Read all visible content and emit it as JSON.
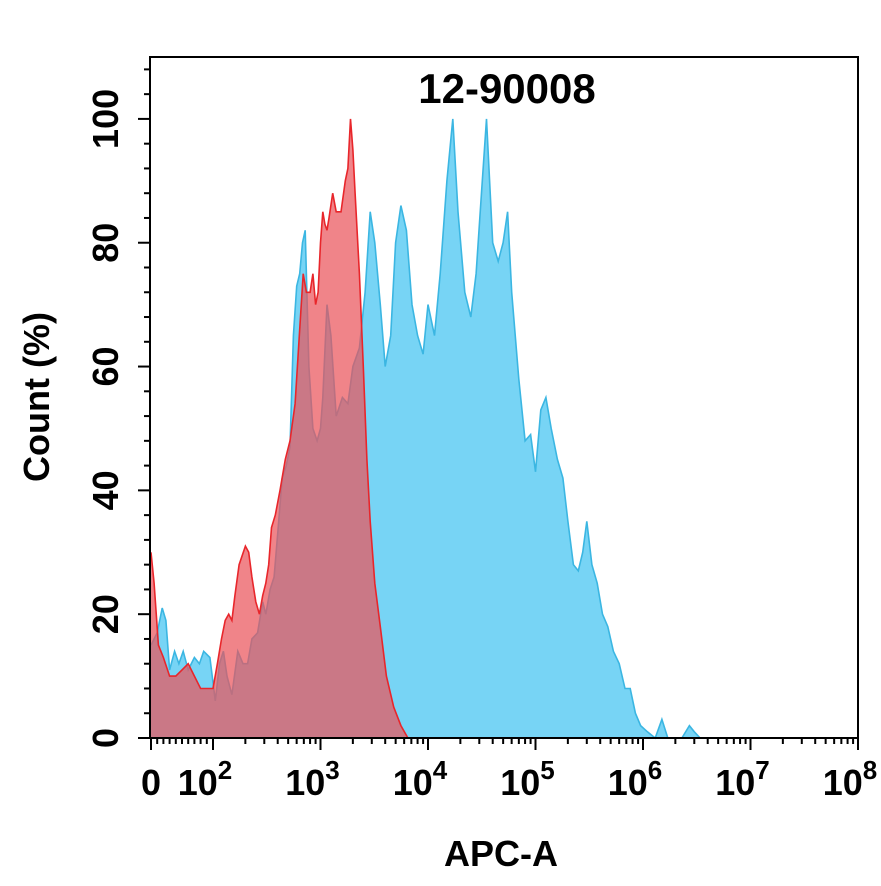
{
  "chart_data": {
    "type": "area",
    "title": "12-90008",
    "xlabel": "APC-A",
    "ylabel": "Count (%)",
    "x_scale": "biexponential (log)",
    "xlim": [
      0,
      100000000
    ],
    "ylim": [
      0,
      110
    ],
    "grid": false,
    "legend": "none",
    "x_ticks": [
      {
        "value": 0,
        "base": "0",
        "exp": ""
      },
      {
        "value": 100,
        "base": "10",
        "exp": "2"
      },
      {
        "value": 1000,
        "base": "10",
        "exp": "3"
      },
      {
        "value": 10000,
        "base": "10",
        "exp": "4"
      },
      {
        "value": 100000,
        "base": "10",
        "exp": "5"
      },
      {
        "value": 1000000,
        "base": "10",
        "exp": "6"
      },
      {
        "value": 10000000,
        "base": "10",
        "exp": "7"
      },
      {
        "value": 100000000,
        "base": "10",
        "exp": "8"
      }
    ],
    "y_ticks": [
      "0",
      "20",
      "40",
      "60",
      "80",
      "100"
    ],
    "series": [
      {
        "color": "#3bb6e2",
        "fill": "#77d4f5",
        "points": [
          [
            0,
            15
          ],
          [
            10,
            17
          ],
          [
            18,
            21
          ],
          [
            24,
            19
          ],
          [
            30,
            11
          ],
          [
            38,
            14
          ],
          [
            45,
            12
          ],
          [
            52,
            14
          ],
          [
            60,
            11
          ],
          [
            70,
            13
          ],
          [
            78,
            12
          ],
          [
            85,
            14
          ],
          [
            95,
            13
          ],
          [
            105,
            6
          ],
          [
            115,
            12
          ],
          [
            125,
            14
          ],
          [
            135,
            10
          ],
          [
            150,
            7
          ],
          [
            170,
            14
          ],
          [
            190,
            12
          ],
          [
            210,
            12
          ],
          [
            230,
            16
          ],
          [
            260,
            17
          ],
          [
            290,
            22
          ],
          [
            310,
            20
          ],
          [
            340,
            24
          ],
          [
            370,
            26
          ],
          [
            400,
            33
          ],
          [
            440,
            42
          ],
          [
            480,
            44
          ],
          [
            520,
            47
          ],
          [
            560,
            65
          ],
          [
            600,
            73
          ],
          [
            640,
            75
          ],
          [
            680,
            80
          ],
          [
            720,
            82
          ],
          [
            780,
            60
          ],
          [
            850,
            50
          ],
          [
            930,
            48
          ],
          [
            1000,
            50
          ],
          [
            1050,
            55
          ],
          [
            1150,
            70
          ],
          [
            1250,
            65
          ],
          [
            1400,
            52
          ],
          [
            1600,
            55
          ],
          [
            1800,
            54
          ],
          [
            2000,
            60
          ],
          [
            2300,
            63
          ],
          [
            2600,
            72
          ],
          [
            2900,
            85
          ],
          [
            3200,
            80
          ],
          [
            3600,
            70
          ],
          [
            4000,
            60
          ],
          [
            4500,
            65
          ],
          [
            5000,
            80
          ],
          [
            5600,
            86
          ],
          [
            6300,
            82
          ],
          [
            7100,
            70
          ],
          [
            8000,
            65
          ],
          [
            9000,
            62
          ],
          [
            10000,
            70
          ],
          [
            11500,
            65
          ],
          [
            13000,
            75
          ],
          [
            15000,
            90
          ],
          [
            17000,
            100
          ],
          [
            19000,
            85
          ],
          [
            22000,
            72
          ],
          [
            25000,
            68
          ],
          [
            28000,
            75
          ],
          [
            32000,
            90
          ],
          [
            35000,
            100
          ],
          [
            40000,
            80
          ],
          [
            45000,
            77
          ],
          [
            50000,
            80
          ],
          [
            55000,
            85
          ],
          [
            60000,
            72
          ],
          [
            70000,
            58
          ],
          [
            80000,
            48
          ],
          [
            90000,
            49
          ],
          [
            100000,
            43
          ],
          [
            112000,
            53
          ],
          [
            125000,
            55
          ],
          [
            140000,
            50
          ],
          [
            160000,
            45
          ],
          [
            180000,
            42
          ],
          [
            200000,
            35
          ],
          [
            225000,
            28
          ],
          [
            250000,
            27
          ],
          [
            275000,
            30
          ],
          [
            300000,
            35
          ],
          [
            335000,
            28
          ],
          [
            375000,
            25
          ],
          [
            420000,
            20
          ],
          [
            470000,
            18
          ],
          [
            530000,
            14
          ],
          [
            600000,
            12
          ],
          [
            680000,
            8
          ],
          [
            760000,
            8
          ],
          [
            850000,
            4
          ],
          [
            950000,
            2
          ],
          [
            1100000,
            1
          ],
          [
            1300000,
            0
          ],
          [
            1500000,
            3
          ],
          [
            1700000,
            0
          ],
          [
            2300000,
            0
          ],
          [
            2700000,
            2
          ],
          [
            3000000,
            1
          ],
          [
            3400000,
            0
          ]
        ]
      },
      {
        "color": "#e8262b",
        "fill": "#ea545c",
        "points": [
          [
            0,
            30
          ],
          [
            5,
            25
          ],
          [
            12,
            15
          ],
          [
            20,
            13
          ],
          [
            30,
            10
          ],
          [
            40,
            10
          ],
          [
            50,
            11
          ],
          [
            60,
            12
          ],
          [
            70,
            10
          ],
          [
            80,
            8
          ],
          [
            90,
            8
          ],
          [
            100,
            8
          ],
          [
            110,
            12
          ],
          [
            120,
            16
          ],
          [
            130,
            19
          ],
          [
            140,
            20
          ],
          [
            150,
            19
          ],
          [
            160,
            23
          ],
          [
            175,
            28
          ],
          [
            200,
            31
          ],
          [
            215,
            30
          ],
          [
            230,
            26
          ],
          [
            250,
            22
          ],
          [
            270,
            20
          ],
          [
            290,
            23
          ],
          [
            310,
            25
          ],
          [
            330,
            28
          ],
          [
            350,
            34
          ],
          [
            380,
            36
          ],
          [
            420,
            40
          ],
          [
            470,
            45
          ],
          [
            520,
            48
          ],
          [
            580,
            54
          ],
          [
            640,
            66
          ],
          [
            690,
            75
          ],
          [
            740,
            72
          ],
          [
            800,
            72
          ],
          [
            850,
            75
          ],
          [
            900,
            70
          ],
          [
            950,
            72
          ],
          [
            1000,
            80
          ],
          [
            1050,
            85
          ],
          [
            1100,
            83
          ],
          [
            1150,
            82
          ],
          [
            1200,
            84
          ],
          [
            1300,
            88
          ],
          [
            1400,
            85
          ],
          [
            1550,
            85
          ],
          [
            1700,
            90
          ],
          [
            1800,
            92
          ],
          [
            1900,
            100
          ],
          [
            2000,
            95
          ],
          [
            2100,
            88
          ],
          [
            2300,
            75
          ],
          [
            2500,
            60
          ],
          [
            2700,
            45
          ],
          [
            2900,
            35
          ],
          [
            3200,
            25
          ],
          [
            3600,
            18
          ],
          [
            4100,
            10
          ],
          [
            4800,
            5
          ],
          [
            5600,
            2
          ],
          [
            6500,
            0
          ]
        ]
      }
    ]
  }
}
